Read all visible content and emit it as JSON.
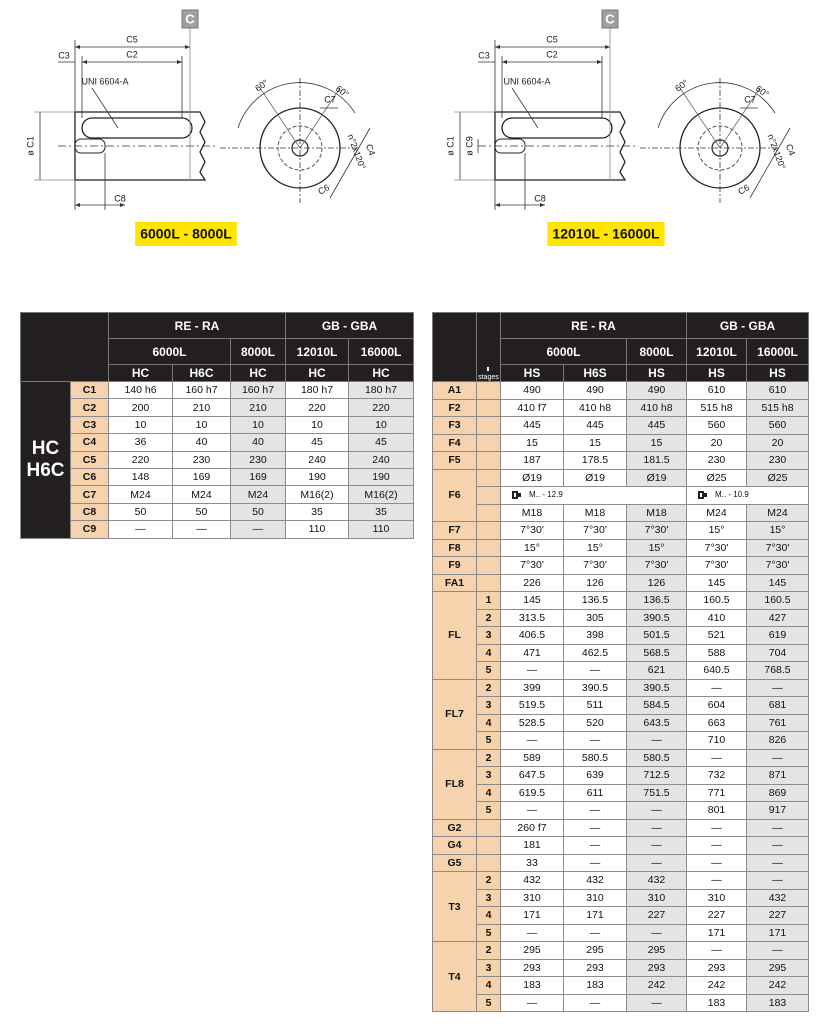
{
  "drawings": [
    {
      "badge": "C",
      "caption": "6000L - 8000L",
      "labels": {
        "c5": "C5",
        "c2": "C2",
        "c3": "C3",
        "uni": "UNI 6604-A",
        "c1": "ø C1",
        "c8": "C8",
        "angle_a": "60°",
        "angle_b": "60°",
        "c7": "C7",
        "c4": "C4",
        "holes": "n°2x120°",
        "c6": "C6"
      }
    },
    {
      "badge": "C",
      "caption": "12010L - 16000L",
      "labels": {
        "c5": "C5",
        "c2": "C2",
        "c3": "C3",
        "uni": "UNI 6604-A",
        "c1": "ø C1",
        "c9": "ø C9",
        "c8": "C8",
        "angle_a": "60°",
        "angle_b": "60°",
        "c7": "C7",
        "c4": "C4",
        "holes": "n°2x120°",
        "c6": "C6"
      }
    }
  ],
  "left_table": {
    "header": [
      {
        "name": "RE - RA",
        "models": [
          {
            "name": "6000L",
            "variants": [
              "HC",
              "H6C"
            ]
          },
          {
            "name": "8000L",
            "variants": [
              "HC"
            ]
          }
        ]
      },
      {
        "name": "GB - GBA",
        "models": [
          {
            "name": "12010L",
            "variants": [
              "HC"
            ]
          },
          {
            "name": "16000L",
            "variants": [
              "HC"
            ]
          }
        ]
      }
    ],
    "side_label": [
      "HC",
      "H6C"
    ],
    "rows": [
      {
        "code": "C1",
        "values": [
          "140 h6",
          "160 h7",
          "160 h7",
          "180 h7",
          "180 h7"
        ]
      },
      {
        "code": "C2",
        "values": [
          "200",
          "210",
          "210",
          "220",
          "220"
        ]
      },
      {
        "code": "C3",
        "values": [
          "10",
          "10",
          "10",
          "10",
          "10"
        ]
      },
      {
        "code": "C4",
        "values": [
          "36",
          "40",
          "40",
          "45",
          "45"
        ]
      },
      {
        "code": "C5",
        "values": [
          "220",
          "230",
          "230",
          "240",
          "240"
        ]
      },
      {
        "code": "C6",
        "values": [
          "148",
          "169",
          "169",
          "190",
          "190"
        ]
      },
      {
        "code": "C7",
        "values": [
          "M24",
          "M24",
          "M24",
          "M16(2)",
          "M16(2)"
        ]
      },
      {
        "code": "C8",
        "values": [
          "50",
          "50",
          "50",
          "35",
          "35"
        ]
      },
      {
        "code": "C9",
        "values": [
          "—",
          "—",
          "—",
          "110",
          "110"
        ]
      }
    ]
  },
  "right_table": {
    "header": [
      {
        "name": "RE - RA",
        "models": [
          {
            "name": "6000L",
            "variants": [
              "HS",
              "H6S"
            ]
          },
          {
            "name": "8000L",
            "variants": [
              "HS"
            ]
          }
        ]
      },
      {
        "name": "GB - GBA",
        "models": [
          {
            "name": "12010L",
            "variants": [
              "HS"
            ]
          },
          {
            "name": "16000L",
            "variants": [
              "HS"
            ]
          }
        ]
      }
    ],
    "stage_header": "stages",
    "groups": [
      {
        "code": "A1",
        "rows": [
          {
            "values": [
              "490",
              "490",
              "490",
              "610",
              "610"
            ]
          }
        ]
      },
      {
        "code": "F2",
        "rows": [
          {
            "values": [
              "410 f7",
              "410 h8",
              "410 h8",
              "515 h8",
              "515 h8"
            ]
          }
        ]
      },
      {
        "code": "F3",
        "rows": [
          {
            "values": [
              "445",
              "445",
              "445",
              "560",
              "560"
            ]
          }
        ]
      },
      {
        "code": "F4",
        "rows": [
          {
            "values": [
              "15",
              "15",
              "15",
              "20",
              "20"
            ]
          }
        ]
      },
      {
        "code": "F5",
        "rows": [
          {
            "values": [
              "187",
              "178.5",
              "181.5",
              "230",
              "230"
            ]
          }
        ]
      },
      {
        "code": "F6",
        "rows": [
          {
            "values": [
              "Ø19",
              "Ø19",
              "Ø19",
              "Ø25",
              "Ø25"
            ]
          },
          {
            "values": [
              "M18",
              "M18",
              "M18",
              "M24",
              "M24"
            ]
          }
        ],
        "bolt_classes": [
          "M.. - 12.9",
          "M.. - 10.9"
        ]
      },
      {
        "code": "F7",
        "rows": [
          {
            "values": [
              "7°30'",
              "7°30'",
              "7°30'",
              "15°",
              "15°"
            ]
          }
        ]
      },
      {
        "code": "F8",
        "rows": [
          {
            "values": [
              "15°",
              "15°",
              "15°",
              "7°30'",
              "7°30'"
            ]
          }
        ]
      },
      {
        "code": "F9",
        "rows": [
          {
            "values": [
              "7°30'",
              "7°30'",
              "7°30'",
              "7°30'",
              "7°30'"
            ]
          }
        ]
      },
      {
        "code": "FA1",
        "rows": [
          {
            "values": [
              "226",
              "126",
              "126",
              "145",
              "145"
            ]
          }
        ]
      },
      {
        "code": "FL",
        "rows": [
          {
            "stage": 1,
            "values": [
              "145",
              "136.5",
              "136.5",
              "160.5",
              "160.5"
            ]
          },
          {
            "stage": 2,
            "values": [
              "313.5",
              "305",
              "390.5",
              "410",
              "427"
            ]
          },
          {
            "stage": 3,
            "values": [
              "406.5",
              "398",
              "501.5",
              "521",
              "619"
            ]
          },
          {
            "stage": 4,
            "values": [
              "471",
              "462.5",
              "568.5",
              "588",
              "704"
            ]
          },
          {
            "stage": 5,
            "values": [
              "—",
              "—",
              "621",
              "640.5",
              "768.5"
            ]
          }
        ]
      },
      {
        "code": "FL7",
        "rows": [
          {
            "stage": 2,
            "values": [
              "399",
              "390.5",
              "390.5",
              "—",
              "—"
            ]
          },
          {
            "stage": 3,
            "values": [
              "519.5",
              "511",
              "584.5",
              "604",
              "681"
            ]
          },
          {
            "stage": 4,
            "values": [
              "528.5",
              "520",
              "643.5",
              "663",
              "761"
            ]
          },
          {
            "stage": 5,
            "values": [
              "—",
              "—",
              "—",
              "710",
              "826"
            ]
          }
        ]
      },
      {
        "code": "FL8",
        "rows": [
          {
            "stage": 2,
            "values": [
              "589",
              "580.5",
              "580.5",
              "—",
              "—"
            ]
          },
          {
            "stage": 3,
            "values": [
              "647.5",
              "639",
              "712.5",
              "732",
              "871"
            ]
          },
          {
            "stage": 4,
            "values": [
              "619.5",
              "611",
              "751.5",
              "771",
              "869"
            ]
          },
          {
            "stage": 5,
            "values": [
              "—",
              "—",
              "—",
              "801",
              "917"
            ]
          }
        ]
      },
      {
        "code": "G2",
        "rows": [
          {
            "values": [
              "260 f7",
              "—",
              "—",
              "—",
              "—"
            ]
          }
        ]
      },
      {
        "code": "G4",
        "rows": [
          {
            "values": [
              "181",
              "—",
              "—",
              "—",
              "—"
            ]
          }
        ]
      },
      {
        "code": "G5",
        "rows": [
          {
            "values": [
              "33",
              "—",
              "—",
              "—",
              "—"
            ]
          }
        ]
      },
      {
        "code": "T3",
        "rows": [
          {
            "stage": 2,
            "values": [
              "432",
              "432",
              "432",
              "—",
              "—"
            ]
          },
          {
            "stage": 3,
            "values": [
              "310",
              "310",
              "310",
              "310",
              "432"
            ]
          },
          {
            "stage": 4,
            "values": [
              "171",
              "171",
              "227",
              "227",
              "227"
            ]
          },
          {
            "stage": 5,
            "values": [
              "—",
              "—",
              "—",
              "171",
              "171"
            ]
          }
        ]
      },
      {
        "code": "T4",
        "rows": [
          {
            "stage": 2,
            "values": [
              "295",
              "295",
              "295",
              "—",
              "—"
            ]
          },
          {
            "stage": 3,
            "values": [
              "293",
              "293",
              "293",
              "293",
              "295"
            ]
          },
          {
            "stage": 4,
            "values": [
              "183",
              "183",
              "242",
              "242",
              "242"
            ]
          },
          {
            "stage": 5,
            "values": [
              "—",
              "—",
              "—",
              "183",
              "183"
            ]
          }
        ]
      }
    ]
  }
}
